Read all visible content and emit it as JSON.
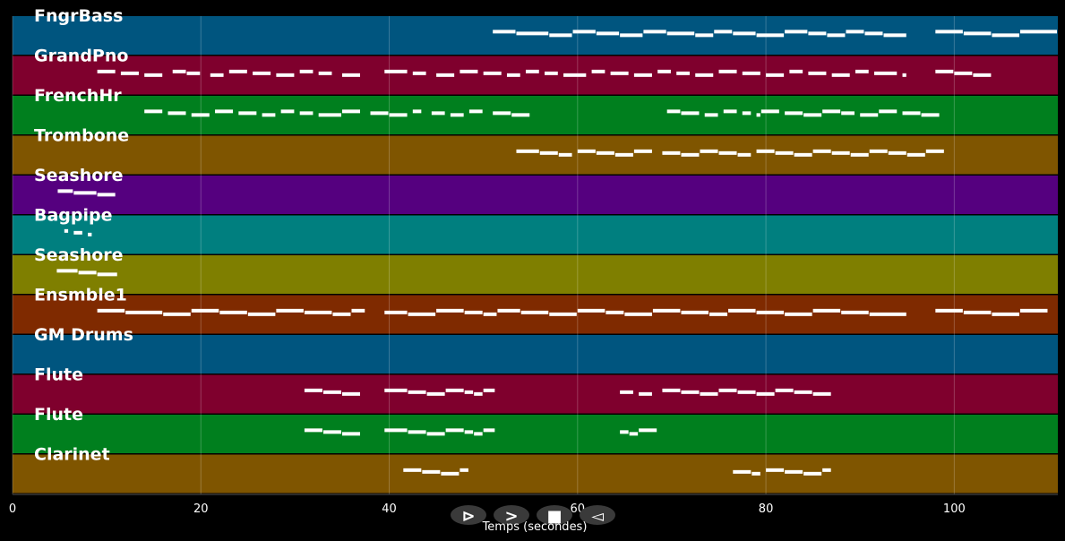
{
  "x_axis": {
    "title": "Temps (secondes)",
    "range": [
      0,
      111
    ],
    "ticks": [
      0,
      20,
      40,
      60,
      80,
      100
    ]
  },
  "tracks": [
    {
      "name": "FngrBass",
      "color": "#00557f",
      "notes": [
        [
          51,
          53.5
        ],
        [
          53.5,
          57
        ],
        [
          57,
          59.5
        ],
        [
          59.5,
          62
        ],
        [
          62,
          64.5
        ],
        [
          64.5,
          67
        ],
        [
          67,
          69.5
        ],
        [
          69.5,
          72.5
        ],
        [
          72.5,
          74.5
        ],
        [
          74.5,
          76.5
        ],
        [
          76.5,
          79
        ],
        [
          79,
          82
        ],
        [
          82,
          84.5
        ],
        [
          84.5,
          86.5
        ],
        [
          86.5,
          88.5
        ],
        [
          88.5,
          90.5
        ],
        [
          90.5,
          92.5
        ],
        [
          92.5,
          95
        ],
        [
          98,
          101
        ],
        [
          101,
          104
        ],
        [
          104,
          107
        ],
        [
          107,
          111
        ]
      ]
    },
    {
      "name": "GrandPno",
      "color": "#7f002d",
      "notes": [
        [
          9,
          11
        ],
        [
          11.5,
          13.5
        ],
        [
          14,
          16
        ],
        [
          17,
          18.5
        ],
        [
          18.5,
          20
        ],
        [
          21,
          22.5
        ],
        [
          23,
          25
        ],
        [
          25.5,
          27.5
        ],
        [
          28,
          30
        ],
        [
          30.5,
          32
        ],
        [
          32.5,
          34
        ],
        [
          35,
          37
        ],
        [
          39.5,
          42
        ],
        [
          42.5,
          44
        ],
        [
          45,
          47
        ],
        [
          47.5,
          49.5
        ],
        [
          50,
          52
        ],
        [
          52.5,
          54
        ],
        [
          54.5,
          56
        ],
        [
          56.5,
          58
        ],
        [
          58.5,
          61
        ],
        [
          61.5,
          63
        ],
        [
          63.5,
          65.5
        ],
        [
          66,
          68
        ],
        [
          68.5,
          70
        ],
        [
          70.5,
          72
        ],
        [
          72.5,
          74.5
        ],
        [
          75,
          77
        ],
        [
          77.5,
          79.5
        ],
        [
          80,
          82
        ],
        [
          82.5,
          84
        ],
        [
          84.5,
          86.5
        ],
        [
          87,
          89
        ],
        [
          89.5,
          91
        ],
        [
          91.5,
          94
        ],
        [
          94.5,
          95
        ],
        [
          98,
          100
        ],
        [
          100,
          102
        ],
        [
          102,
          104
        ]
      ]
    },
    {
      "name": "FrenchHr",
      "color": "#007f1e",
      "notes": [
        [
          14,
          16
        ],
        [
          16.5,
          18.5
        ],
        [
          19,
          21
        ],
        [
          21.5,
          23.5
        ],
        [
          24,
          26
        ],
        [
          26.5,
          28
        ],
        [
          28.5,
          30
        ],
        [
          30.5,
          32
        ],
        [
          32.5,
          35
        ],
        [
          35,
          37
        ],
        [
          38,
          40
        ],
        [
          40,
          42
        ],
        [
          42.5,
          43.5
        ],
        [
          44.5,
          46
        ],
        [
          46.5,
          48
        ],
        [
          48.5,
          50
        ],
        [
          51,
          53
        ],
        [
          53,
          55
        ],
        [
          69.5,
          71
        ],
        [
          71,
          73
        ],
        [
          73.5,
          75
        ],
        [
          75.5,
          77
        ],
        [
          77.5,
          78.5
        ],
        [
          79,
          79.5
        ],
        [
          79.5,
          81.5
        ],
        [
          82,
          84
        ],
        [
          84,
          86
        ],
        [
          86,
          88
        ],
        [
          88,
          89.5
        ],
        [
          90,
          92
        ],
        [
          92,
          94
        ],
        [
          94.5,
          96.5
        ],
        [
          96.5,
          98.5
        ]
      ]
    },
    {
      "name": "Trombone",
      "color": "#7f5500",
      "notes": [
        [
          53.5,
          56
        ],
        [
          56,
          58
        ],
        [
          58,
          59.5
        ],
        [
          60,
          62
        ],
        [
          62,
          64
        ],
        [
          64,
          66
        ],
        [
          66,
          68
        ],
        [
          69,
          71
        ],
        [
          71,
          73
        ],
        [
          73,
          75
        ],
        [
          75,
          77
        ],
        [
          77,
          78.5
        ],
        [
          79,
          81
        ],
        [
          81,
          83
        ],
        [
          83,
          85
        ],
        [
          85,
          87
        ],
        [
          87,
          89
        ],
        [
          89,
          91
        ],
        [
          91,
          93
        ],
        [
          93,
          95
        ],
        [
          95,
          97
        ],
        [
          97,
          99
        ]
      ]
    },
    {
      "name": "Seashore",
      "color": "#55007f",
      "notes": [
        [
          4.8,
          6.5
        ],
        [
          6.5,
          9
        ],
        [
          9,
          11
        ]
      ]
    },
    {
      "name": "Bagpipe",
      "color": "#007f7f",
      "notes": [
        [
          5.5,
          6
        ],
        [
          6.5,
          7.5
        ],
        [
          8,
          8.5
        ]
      ]
    },
    {
      "name": "Seashore",
      "color": "#7f7f00",
      "notes": [
        [
          4.7,
          7
        ],
        [
          7,
          9
        ],
        [
          9,
          11.2
        ]
      ]
    },
    {
      "name": "Ensmble1",
      "color": "#7f2a00",
      "notes": [
        [
          9,
          12
        ],
        [
          12,
          16
        ],
        [
          16,
          19
        ],
        [
          19,
          22
        ],
        [
          22,
          25
        ],
        [
          25,
          28
        ],
        [
          28,
          31
        ],
        [
          31,
          34
        ],
        [
          34,
          36
        ],
        [
          36,
          37.5
        ],
        [
          39.5,
          42
        ],
        [
          42,
          45
        ],
        [
          45,
          48
        ],
        [
          48,
          50
        ],
        [
          50,
          51.5
        ],
        [
          51.5,
          54
        ],
        [
          54,
          57
        ],
        [
          57,
          60
        ],
        [
          60,
          63
        ],
        [
          63,
          65
        ],
        [
          65,
          68
        ],
        [
          68,
          71
        ],
        [
          71,
          74
        ],
        [
          74,
          76
        ],
        [
          76,
          79
        ],
        [
          79,
          82
        ],
        [
          82,
          85
        ],
        [
          85,
          88
        ],
        [
          88,
          91
        ],
        [
          91,
          95
        ],
        [
          98,
          101
        ],
        [
          101,
          104
        ],
        [
          104,
          107
        ],
        [
          107,
          110
        ]
      ]
    },
    {
      "name": "GM Drums",
      "color": "#00557f",
      "notes": []
    },
    {
      "name": "Flute",
      "color": "#7f002d",
      "notes": [
        [
          31,
          33
        ],
        [
          33,
          35
        ],
        [
          35,
          37
        ],
        [
          39.5,
          42
        ],
        [
          42,
          44
        ],
        [
          44,
          46
        ],
        [
          46,
          48
        ],
        [
          48,
          49
        ],
        [
          49,
          50
        ],
        [
          50,
          51.3
        ],
        [
          64.5,
          66
        ],
        [
          66.5,
          68
        ],
        [
          69,
          71
        ],
        [
          71,
          73
        ],
        [
          73,
          75
        ],
        [
          75,
          77
        ],
        [
          77,
          79
        ],
        [
          79,
          81
        ],
        [
          81,
          83
        ],
        [
          83,
          85
        ],
        [
          85,
          87
        ]
      ]
    },
    {
      "name": "Flute",
      "color": "#007f1e",
      "notes": [
        [
          31,
          33
        ],
        [
          33,
          35
        ],
        [
          35,
          37
        ],
        [
          39.5,
          42
        ],
        [
          42,
          44
        ],
        [
          44,
          46
        ],
        [
          46,
          48
        ],
        [
          48,
          49
        ],
        [
          49,
          50
        ],
        [
          50,
          51.3
        ],
        [
          64.5,
          65.5
        ],
        [
          65.5,
          66.5
        ],
        [
          66.5,
          68.5
        ]
      ]
    },
    {
      "name": "Clarinet",
      "color": "#7f5500",
      "notes": [
        [
          41.5,
          43.5
        ],
        [
          43.5,
          45.5
        ],
        [
          45.5,
          47.5
        ],
        [
          47.5,
          48.5
        ],
        [
          76.5,
          78.5
        ],
        [
          78.5,
          79.5
        ],
        [
          80,
          82
        ],
        [
          82,
          84
        ],
        [
          84,
          86
        ],
        [
          86,
          87
        ]
      ]
    }
  ],
  "controls": [
    {
      "id": "play",
      "symbol": "⊳"
    },
    {
      "id": "forward",
      "symbol": ">"
    },
    {
      "id": "stop",
      "symbol": "■"
    },
    {
      "id": "rewind",
      "symbol": "◅"
    }
  ]
}
